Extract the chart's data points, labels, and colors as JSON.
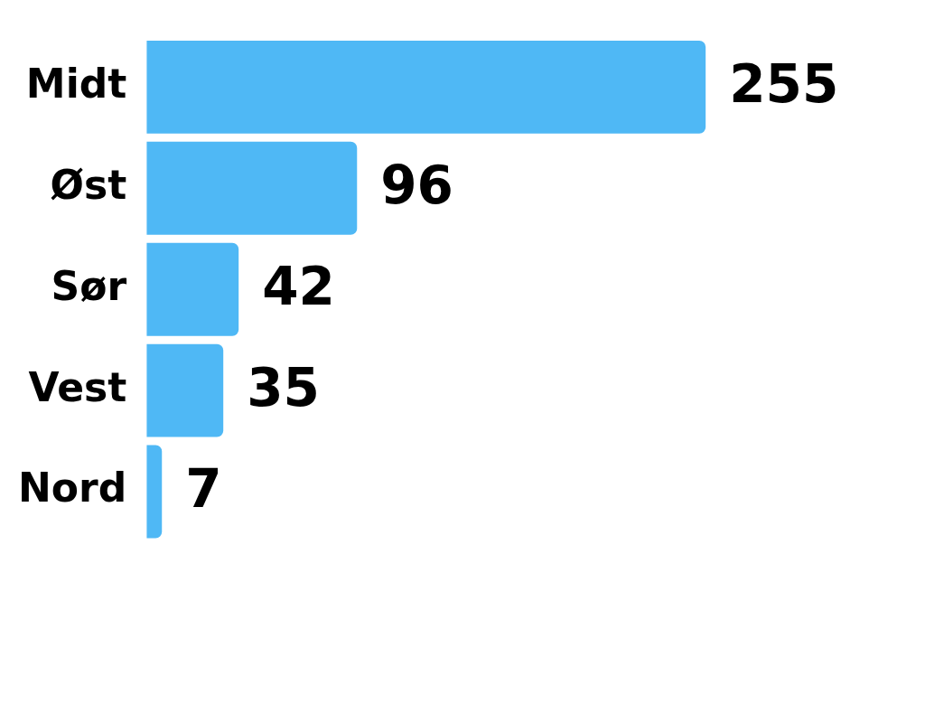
{
  "chart_data": {
    "type": "bar",
    "orientation": "horizontal",
    "categories": [
      "Midt",
      "Øst",
      "Sør",
      "Vest",
      "Nord"
    ],
    "values": [
      255,
      96,
      42,
      35,
      7
    ],
    "color": "#4fb8f5",
    "data_labels": true,
    "legend": false
  }
}
